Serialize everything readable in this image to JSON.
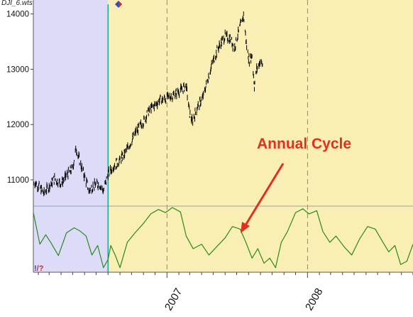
{
  "window": {
    "file_label": "DJI_6.wts"
  },
  "annotation": {
    "text": "Annual Cycle",
    "color": "#e62e1f"
  },
  "corner_marker": {
    "left": "!",
    "right": "/?"
  },
  "colors": {
    "history_bg": "#dcdcf8",
    "forecast_bg": "#f9efb4",
    "price_bar": "#000000",
    "cycle_line": "#2b8a1b",
    "separator_line": "#18a08c"
  },
  "chart_data": [
    {
      "type": "line",
      "title": "",
      "xlabel": "",
      "ylabel": "",
      "xlim": [
        "2006-01-19",
        "2008-10-01"
      ],
      "ylim": [
        10550,
        14150
      ],
      "yticks": [
        11000,
        12000,
        13000,
        14000
      ],
      "ytick_labels": [
        "11000",
        "12000",
        "13000",
        "14000"
      ],
      "grid": "vertical dashed lines at year starts",
      "forecast_start": "2006-08-01",
      "series": [
        {
          "style": "ohlc-bars",
          "points": [
            [
              "2006-01-19",
              10980
            ],
            [
              "2006-02-01",
              10890
            ],
            [
              "2006-02-15",
              10760
            ],
            [
              "2006-03-01",
              10880
            ],
            [
              "2006-03-15",
              11020
            ],
            [
              "2006-04-01",
              10930
            ],
            [
              "2006-04-15",
              11080
            ],
            [
              "2006-05-01",
              11200
            ],
            [
              "2006-05-10",
              11580
            ],
            [
              "2006-05-20",
              11320
            ],
            [
              "2006-06-01",
              11060
            ],
            [
              "2006-06-13",
              10800
            ],
            [
              "2006-06-25",
              10900
            ],
            [
              "2006-07-10",
              10920
            ],
            [
              "2006-07-20",
              10800
            ],
            [
              "2006-08-01",
              11100
            ],
            [
              "2006-08-15",
              11250
            ],
            [
              "2006-09-01",
              11350
            ],
            [
              "2006-09-15",
              11500
            ],
            [
              "2006-10-01",
              11700
            ],
            [
              "2006-10-15",
              11900
            ],
            [
              "2006-11-01",
              12050
            ],
            [
              "2006-11-15",
              12250
            ],
            [
              "2006-12-01",
              12350
            ],
            [
              "2006-12-15",
              12450
            ],
            [
              "2007-01-01",
              12480
            ],
            [
              "2007-01-15",
              12520
            ],
            [
              "2007-02-01",
              12600
            ],
            [
              "2007-02-20",
              12700
            ],
            [
              "2007-03-01",
              12200
            ],
            [
              "2007-03-08",
              12050
            ],
            [
              "2007-03-20",
              12300
            ],
            [
              "2007-04-05",
              12500
            ],
            [
              "2007-04-20",
              12900
            ],
            [
              "2007-05-01",
              13150
            ],
            [
              "2007-05-15",
              13400
            ],
            [
              "2007-06-01",
              13600
            ],
            [
              "2007-06-15",
              13550
            ],
            [
              "2007-06-25",
              13380
            ],
            [
              "2007-07-05",
              13650
            ],
            [
              "2007-07-19",
              13980
            ],
            [
              "2007-07-27",
              13400
            ],
            [
              "2007-08-03",
              13150
            ],
            [
              "2007-08-10",
              13250
            ],
            [
              "2007-08-16",
              12700
            ],
            [
              "2007-08-22",
              13000
            ],
            [
              "2007-09-01",
              13150
            ],
            [
              "2007-09-07",
              13050
            ]
          ]
        }
      ]
    },
    {
      "type": "line",
      "title": "",
      "xlabel": "",
      "ylabel": "",
      "xlim": [
        "2006-01-19",
        "2008-10-01"
      ],
      "x_tick_labels": [
        "2007",
        "2008"
      ],
      "ylim": [
        0,
        1
      ],
      "grid": "vertical dashed lines at year starts",
      "series": [
        {
          "points": [
            [
              "2006-01-19",
              0.92
            ],
            [
              "2006-02-05",
              0.42
            ],
            [
              "2006-02-20",
              0.57
            ],
            [
              "2006-03-05",
              0.45
            ],
            [
              "2006-03-25",
              0.24
            ],
            [
              "2006-04-15",
              0.6
            ],
            [
              "2006-05-05",
              0.68
            ],
            [
              "2006-05-20",
              0.63
            ],
            [
              "2006-06-05",
              0.55
            ],
            [
              "2006-06-20",
              0.25
            ],
            [
              "2006-07-05",
              0.4
            ],
            [
              "2006-07-20",
              0.05
            ],
            [
              "2006-08-01",
              0.18
            ],
            [
              "2006-08-08",
              0.4
            ],
            [
              "2006-08-20",
              0.24
            ],
            [
              "2006-09-01",
              0.05
            ],
            [
              "2006-09-20",
              0.45
            ],
            [
              "2006-10-10",
              0.6
            ],
            [
              "2006-11-01",
              0.75
            ],
            [
              "2006-11-20",
              0.9
            ],
            [
              "2006-12-10",
              0.97
            ],
            [
              "2006-12-28",
              0.92
            ],
            [
              "2007-01-15",
              1.0
            ],
            [
              "2007-02-05",
              0.93
            ],
            [
              "2007-02-20",
              0.55
            ],
            [
              "2007-03-10",
              0.35
            ],
            [
              "2007-04-01",
              0.42
            ],
            [
              "2007-04-20",
              0.25
            ],
            [
              "2007-05-10",
              0.38
            ],
            [
              "2007-06-01",
              0.52
            ],
            [
              "2007-06-20",
              0.7
            ],
            [
              "2007-07-10",
              0.66
            ],
            [
              "2007-07-25",
              0.45
            ],
            [
              "2007-08-10",
              0.2
            ],
            [
              "2007-08-25",
              0.35
            ],
            [
              "2007-09-10",
              0.12
            ],
            [
              "2007-09-25",
              0.2
            ],
            [
              "2007-10-10",
              0.05
            ],
            [
              "2007-10-25",
              0.45
            ],
            [
              "2007-11-10",
              0.62
            ],
            [
              "2007-12-01",
              0.92
            ],
            [
              "2007-12-20",
              0.98
            ],
            [
              "2008-01-05",
              0.9
            ],
            [
              "2008-01-25",
              0.95
            ],
            [
              "2008-02-10",
              0.62
            ],
            [
              "2008-02-28",
              0.45
            ],
            [
              "2008-03-15",
              0.55
            ],
            [
              "2008-04-05",
              0.38
            ],
            [
              "2008-04-25",
              0.25
            ],
            [
              "2008-05-15",
              0.5
            ],
            [
              "2008-06-05",
              0.7
            ],
            [
              "2008-06-25",
              0.66
            ],
            [
              "2008-07-15",
              0.45
            ],
            [
              "2008-07-30",
              0.3
            ],
            [
              "2008-08-15",
              0.4
            ],
            [
              "2008-08-30",
              0.1
            ],
            [
              "2008-09-15",
              0.15
            ],
            [
              "2008-10-01",
              0.42
            ]
          ]
        }
      ]
    }
  ]
}
